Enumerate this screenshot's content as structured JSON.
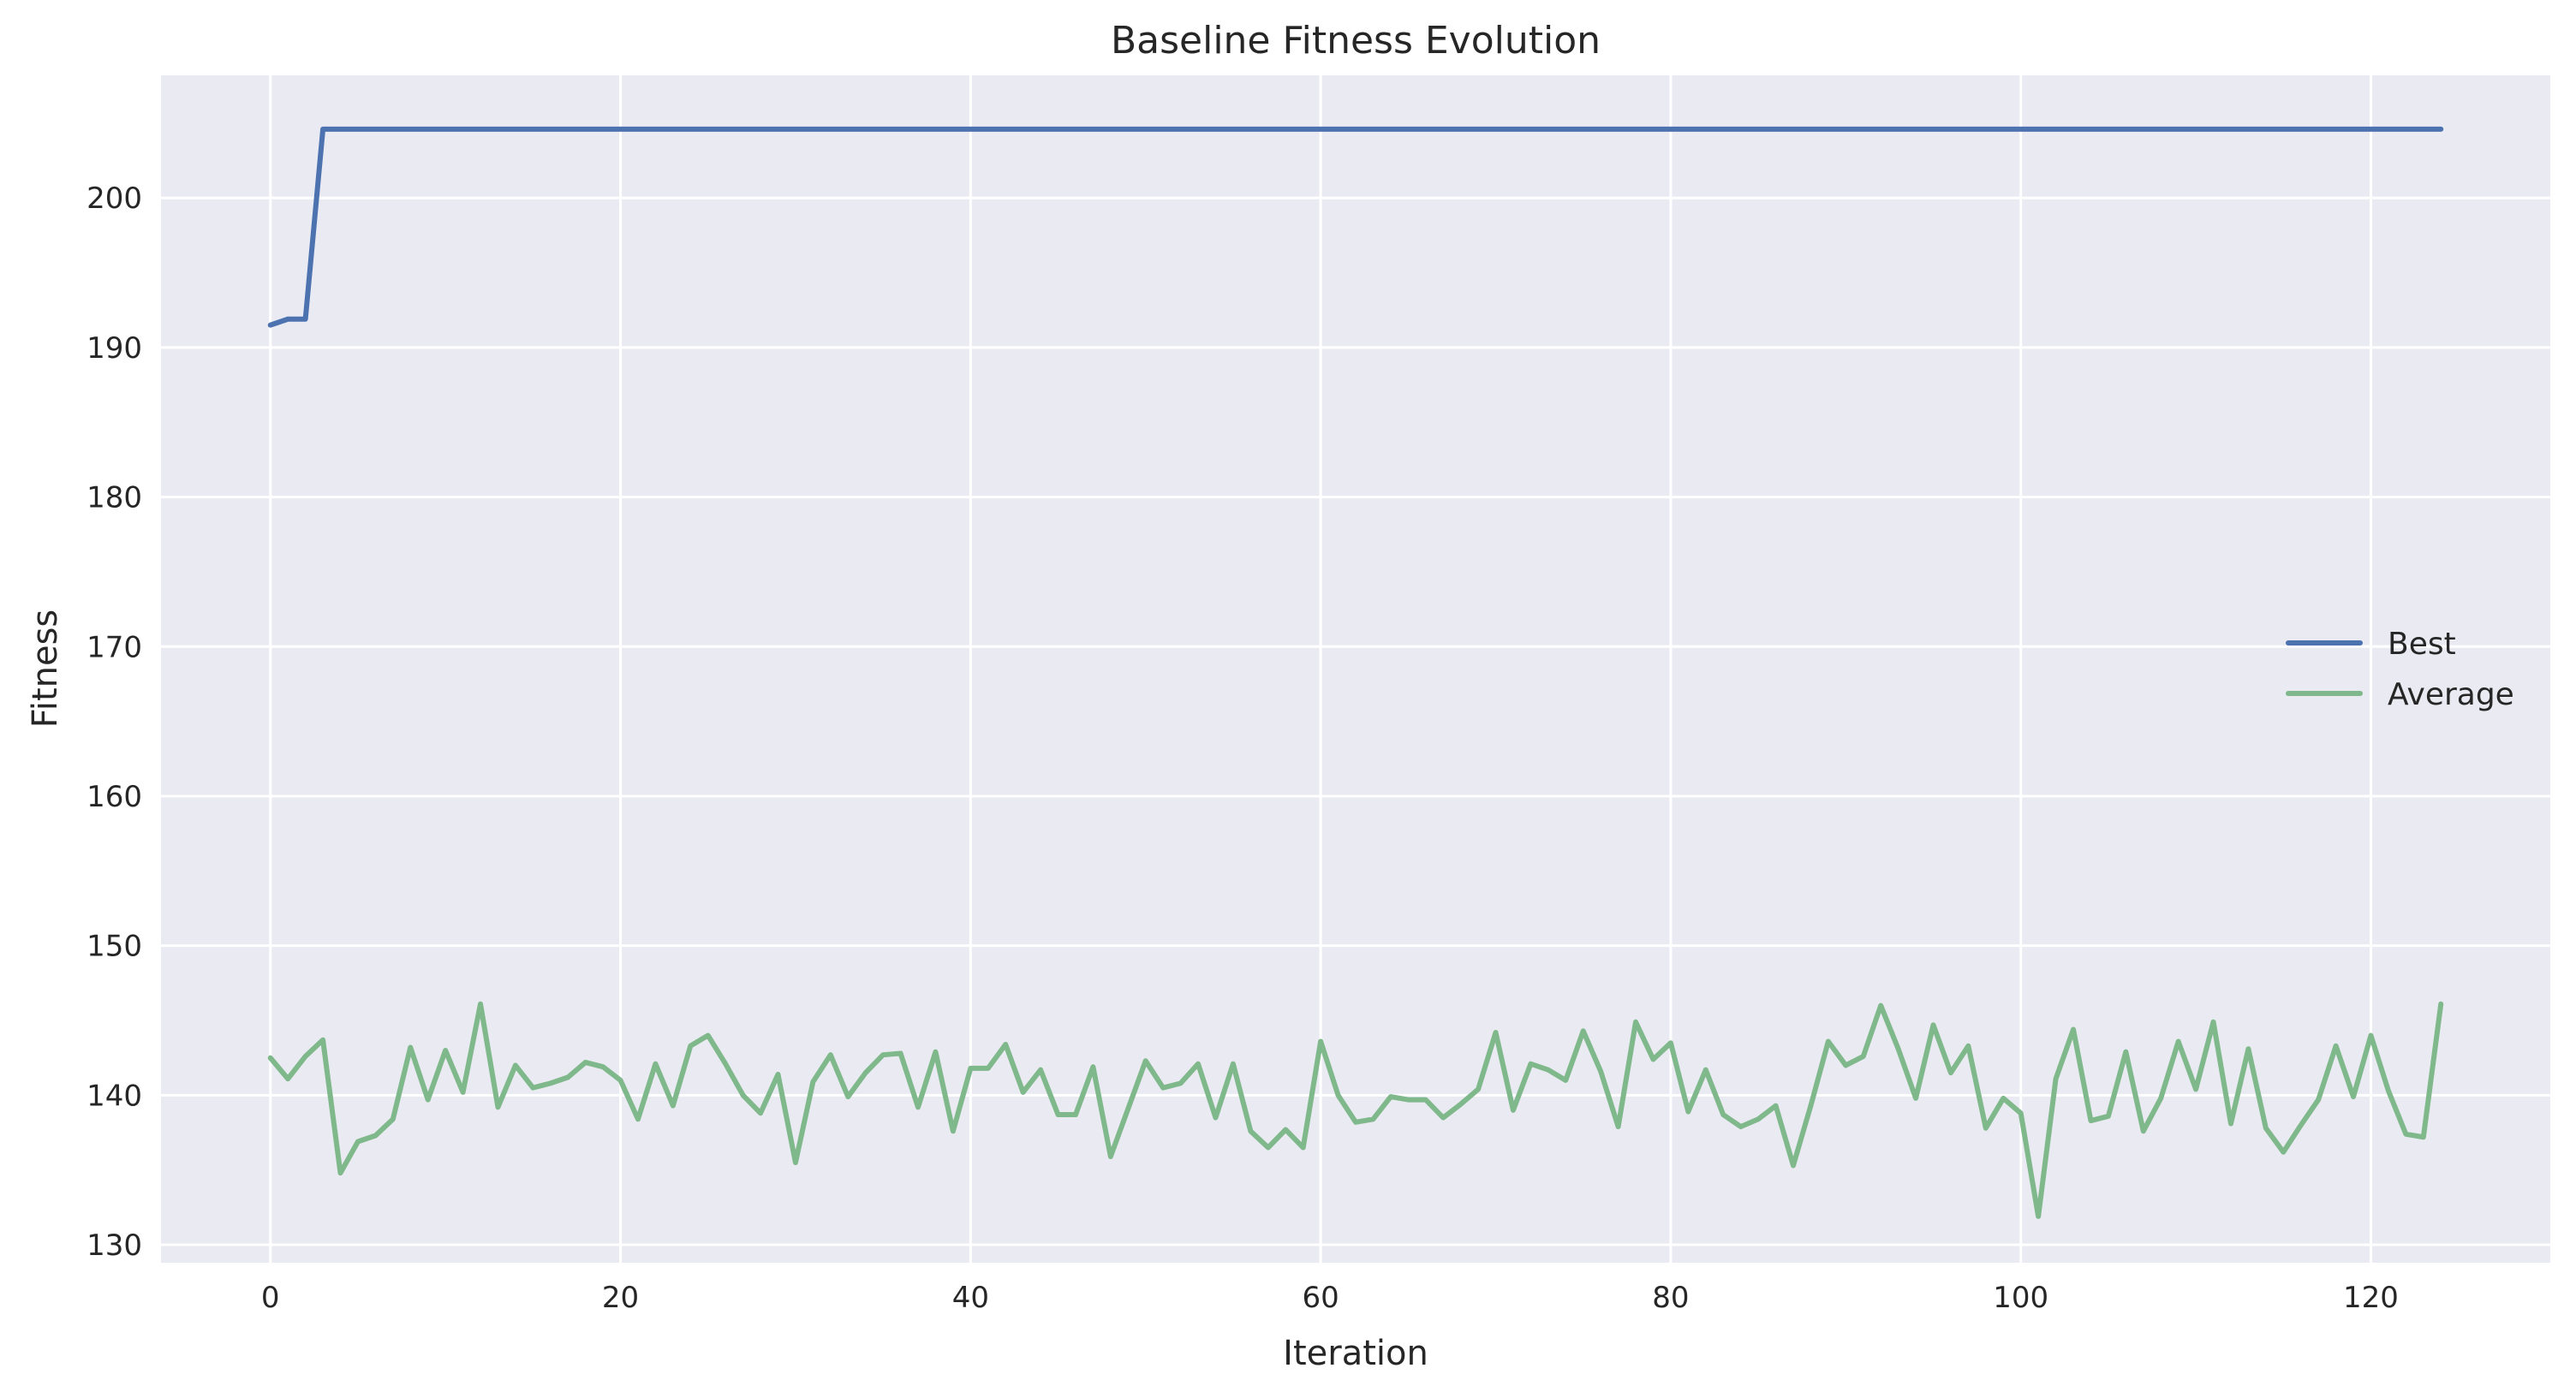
{
  "chart_data": {
    "type": "line",
    "title": "Baseline Fitness Evolution",
    "xlabel": "Iteration",
    "ylabel": "Fitness",
    "xlim": [
      -6.25,
      130.25
    ],
    "ylim": [
      128.8,
      208.2
    ],
    "xticks": [
      0,
      20,
      40,
      60,
      80,
      100,
      120
    ],
    "yticks": [
      130,
      140,
      150,
      160,
      170,
      180,
      190,
      200
    ],
    "grid": true,
    "legend_position": "center-right",
    "background": "#eaeaf2",
    "series": [
      {
        "name": "Best",
        "color": "#4c72b0",
        "x_start": 0,
        "values": [
          191.5,
          191.9,
          191.9,
          204.6,
          204.6,
          204.6,
          204.6,
          204.6,
          204.6,
          204.6,
          204.6,
          204.6,
          204.6,
          204.6,
          204.6,
          204.6,
          204.6,
          204.6,
          204.6,
          204.6,
          204.6,
          204.6,
          204.6,
          204.6,
          204.6,
          204.6,
          204.6,
          204.6,
          204.6,
          204.6,
          204.6,
          204.6,
          204.6,
          204.6,
          204.6,
          204.6,
          204.6,
          204.6,
          204.6,
          204.6,
          204.6,
          204.6,
          204.6,
          204.6,
          204.6,
          204.6,
          204.6,
          204.6,
          204.6,
          204.6,
          204.6,
          204.6,
          204.6,
          204.6,
          204.6,
          204.6,
          204.6,
          204.6,
          204.6,
          204.6,
          204.6,
          204.6,
          204.6,
          204.6,
          204.6,
          204.6,
          204.6,
          204.6,
          204.6,
          204.6,
          204.6,
          204.6,
          204.6,
          204.6,
          204.6,
          204.6,
          204.6,
          204.6,
          204.6,
          204.6,
          204.6,
          204.6,
          204.6,
          204.6,
          204.6,
          204.6,
          204.6,
          204.6,
          204.6,
          204.6,
          204.6,
          204.6,
          204.6,
          204.6,
          204.6,
          204.6,
          204.6,
          204.6,
          204.6,
          204.6,
          204.6,
          204.6,
          204.6,
          204.6,
          204.6,
          204.6,
          204.6,
          204.6,
          204.6,
          204.6,
          204.6,
          204.6,
          204.6,
          204.6,
          204.6,
          204.6,
          204.6,
          204.6,
          204.6,
          204.6,
          204.6,
          204.6,
          204.6,
          204.6,
          204.6
        ]
      },
      {
        "name": "Average",
        "color": "#7fb88a",
        "x_start": 0,
        "values": [
          142.5,
          141.1,
          142.6,
          143.7,
          134.8,
          136.9,
          137.3,
          138.4,
          143.2,
          139.7,
          143.0,
          140.2,
          146.1,
          139.2,
          142.0,
          140.5,
          140.8,
          141.2,
          142.2,
          141.9,
          141.0,
          138.4,
          142.1,
          139.3,
          143.3,
          144.0,
          142.1,
          140.0,
          138.8,
          141.4,
          135.5,
          140.9,
          142.7,
          139.9,
          141.5,
          142.7,
          142.8,
          139.2,
          142.9,
          137.6,
          141.8,
          141.8,
          143.4,
          140.2,
          141.7,
          138.7,
          138.7,
          141.9,
          135.9,
          139.1,
          142.3,
          140.5,
          140.8,
          142.1,
          138.5,
          142.1,
          137.6,
          136.5,
          137.7,
          136.5,
          143.6,
          140.0,
          138.2,
          138.4,
          139.9,
          139.7,
          139.7,
          138.5,
          139.4,
          140.4,
          144.2,
          139.0,
          142.1,
          141.7,
          141.0,
          144.3,
          141.6,
          137.9,
          144.9,
          142.4,
          143.5,
          138.9,
          141.7,
          138.7,
          137.9,
          138.4,
          139.3,
          135.3,
          139.3,
          143.6,
          142.0,
          142.6,
          146.0,
          143.1,
          139.8,
          144.7,
          141.5,
          143.3,
          137.8,
          139.8,
          138.8,
          131.9,
          141.1,
          144.4,
          138.3,
          138.6,
          142.9,
          137.6,
          139.8,
          143.6,
          140.4,
          144.9,
          138.1,
          143.1,
          137.8,
          136.2,
          138.0,
          139.7,
          143.3,
          139.9,
          144.0,
          140.3,
          137.4,
          137.2,
          146.1
        ]
      }
    ]
  }
}
